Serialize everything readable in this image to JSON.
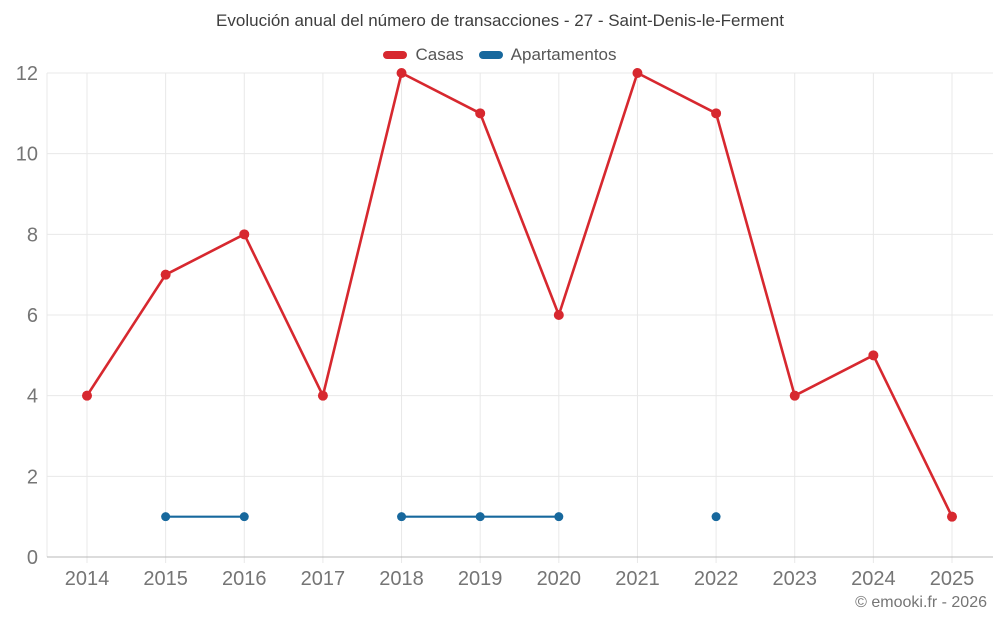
{
  "chart_data": {
    "type": "line",
    "title": "Evolución anual del número de transacciones - 27 - Saint-Denis-le-Ferment",
    "categories": [
      "2014",
      "2015",
      "2016",
      "2017",
      "2018",
      "2019",
      "2020",
      "2021",
      "2022",
      "2023",
      "2024",
      "2025"
    ],
    "series": [
      {
        "name": "Casas",
        "color": "#d7282f",
        "values": [
          4,
          7,
          8,
          4,
          12,
          11,
          6,
          12,
          11,
          4,
          5,
          1
        ]
      },
      {
        "name": "Apartamentos",
        "color": "#17689d",
        "values": [
          null,
          1,
          1,
          null,
          1,
          1,
          1,
          null,
          1,
          null,
          null,
          null
        ]
      }
    ],
    "ylim": [
      0,
      12
    ],
    "yticks": [
      0,
      2,
      4,
      6,
      8,
      10,
      12
    ],
    "grid": true,
    "legend_position": "top",
    "grid_color": "#e8e8e8",
    "axis_line_color": "#b8b8b8",
    "axis_label_color": "#757575",
    "watermark": "© emooki.fr - 2026"
  }
}
